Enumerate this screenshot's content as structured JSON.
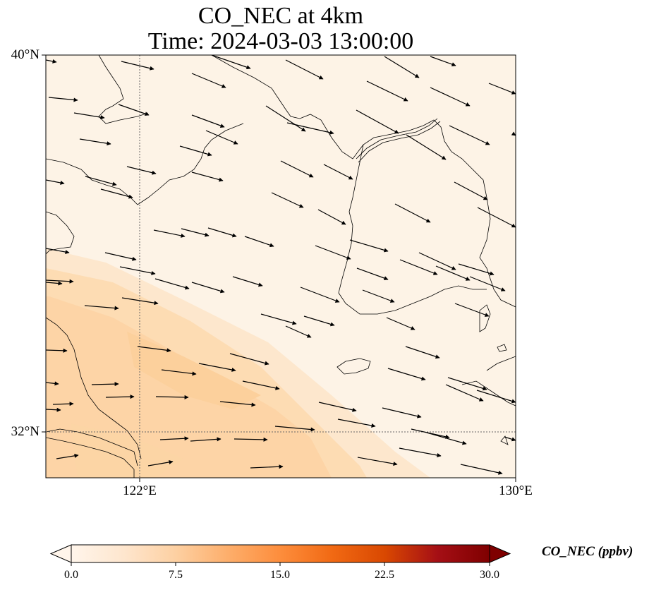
{
  "title": {
    "line1": "CO_NEC at 4km",
    "line2": "Time: 2024-03-03 13:00:00"
  },
  "map": {
    "lat_labels": [
      {
        "text": "40°N",
        "lat": 40
      },
      {
        "text": "32°N",
        "lat": 32
      }
    ],
    "lon_labels": [
      {
        "text": "122°E",
        "lon": 122
      },
      {
        "text": "130°E",
        "lon": 130
      }
    ],
    "lon_range": [
      120,
      130
    ],
    "lat_range": [
      31,
      40
    ],
    "gridlines": {
      "lat": [
        32
      ],
      "lon": [
        122
      ],
      "style": "dotted"
    },
    "field_colors": {
      "background": "#fdf3e6",
      "plume_light": "#fde6cb",
      "plume": "#fdd9ae",
      "plume_core": "#fccf9a"
    },
    "coastline_color": "#000000",
    "wind_vectors": "black arrows pointing east-southeast"
  },
  "colorbar": {
    "label": "CO_NEC (ppbv)",
    "ticks": [
      "0.0",
      "7.5",
      "15.0",
      "22.5",
      "30.0"
    ],
    "range": [
      0,
      30
    ],
    "extend": "both",
    "colormap": [
      "#fff5eb",
      "#fee6ce",
      "#fdd0a2",
      "#fdae6b",
      "#fd8d3c",
      "#f16913",
      "#d94801",
      "#a50f15",
      "#7f0000"
    ]
  }
}
